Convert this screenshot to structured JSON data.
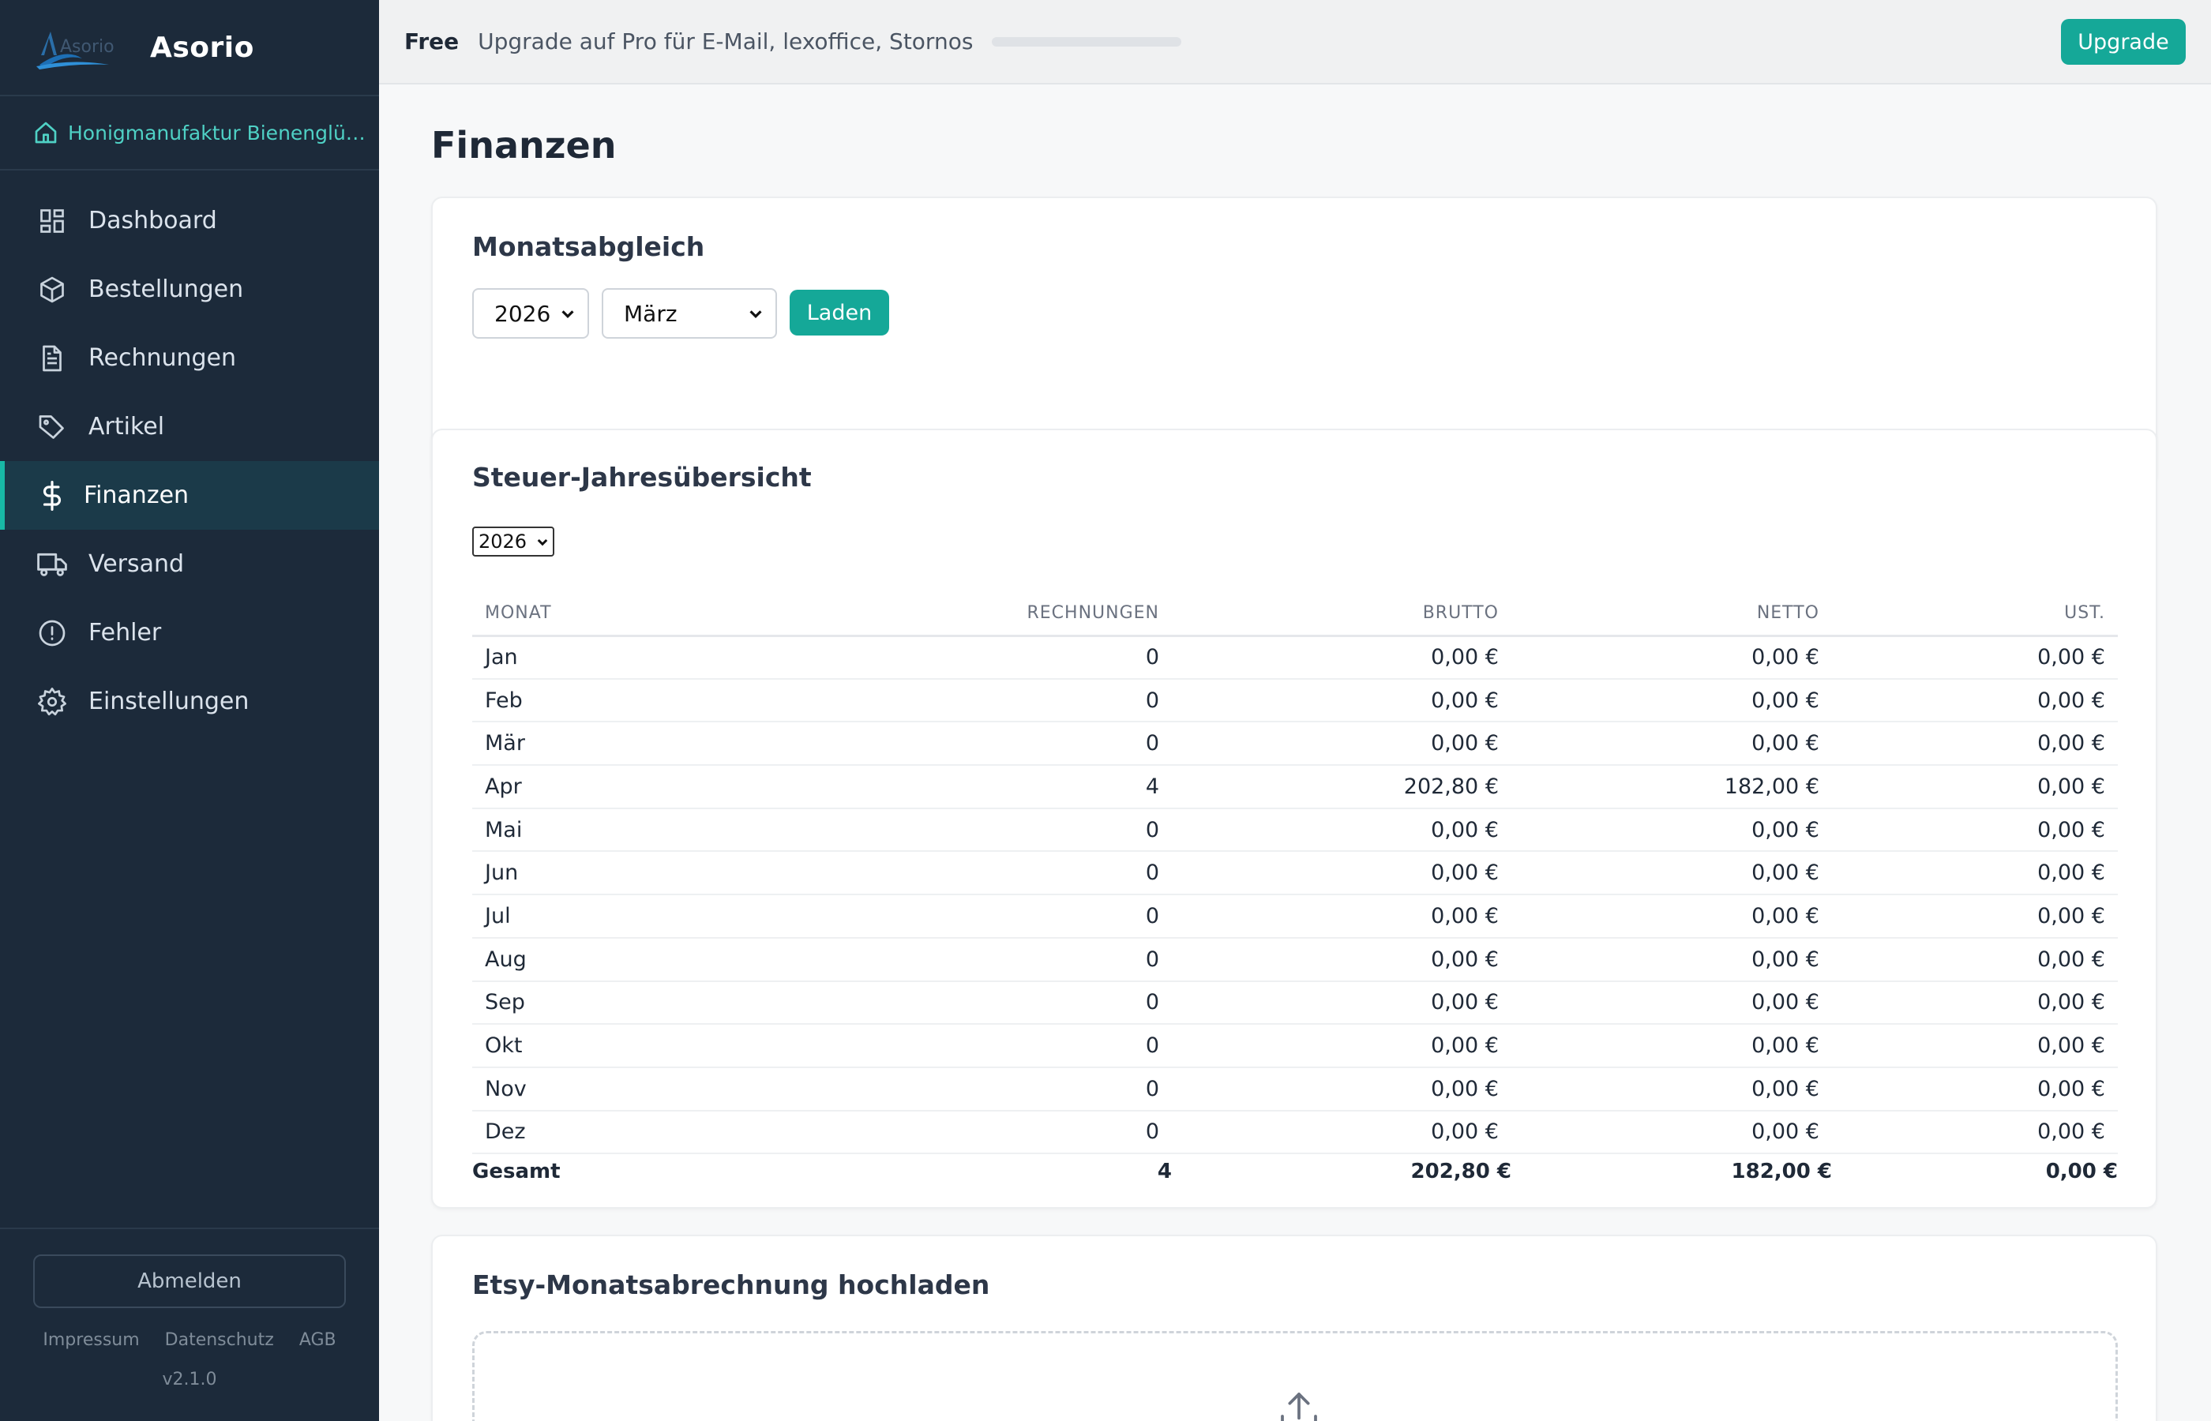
{
  "app": {
    "brand_name": "Asorio",
    "logo_text": "Asorio",
    "accent": "#18b9a6"
  },
  "company": {
    "name": "Honigmanufaktur Bienenglü…"
  },
  "sidebar": {
    "items": [
      {
        "label": "Dashboard",
        "icon": "dashboard-icon",
        "active": false
      },
      {
        "label": "Bestellungen",
        "icon": "box-icon",
        "active": false
      },
      {
        "label": "Rechnungen",
        "icon": "document-icon",
        "active": false
      },
      {
        "label": "Artikel",
        "icon": "tag-icon",
        "active": false
      },
      {
        "label": "Finanzen",
        "icon": "dollar-icon",
        "active": true
      },
      {
        "label": "Versand",
        "icon": "truck-icon",
        "active": false
      },
      {
        "label": "Fehler",
        "icon": "alert-icon",
        "active": false
      },
      {
        "label": "Einstellungen",
        "icon": "gear-icon",
        "active": false
      }
    ],
    "logout_label": "Abmelden",
    "footer_links": [
      "Impressum",
      "Datenschutz",
      "AGB"
    ],
    "version": "v2.1.0"
  },
  "topbar": {
    "plan": "Free",
    "upgrade_text": "Upgrade auf Pro für E-Mail, lexoffice, Stornos",
    "usage_fraction": 0.0,
    "upgrade_label": "Upgrade"
  },
  "page": {
    "title": "Finanzen"
  },
  "monatsabgleich": {
    "title": "Monatsabgleich",
    "year": "2026",
    "month": "März",
    "load_label": "Laden"
  },
  "jahresuebersicht": {
    "title": "Steuer-Jahresübersicht",
    "year": "2026",
    "columns": [
      "MONAT",
      "RECHNUNGEN",
      "BRUTTO",
      "NETTO",
      "UST."
    ],
    "rows": [
      [
        "Jan",
        "0",
        "0,00 €",
        "0,00 €",
        "0,00 €"
      ],
      [
        "Feb",
        "0",
        "0,00 €",
        "0,00 €",
        "0,00 €"
      ],
      [
        "Mär",
        "0",
        "0,00 €",
        "0,00 €",
        "0,00 €"
      ],
      [
        "Apr",
        "4",
        "202,80 €",
        "182,00 €",
        "0,00 €"
      ],
      [
        "Mai",
        "0",
        "0,00 €",
        "0,00 €",
        "0,00 €"
      ],
      [
        "Jun",
        "0",
        "0,00 €",
        "0,00 €",
        "0,00 €"
      ],
      [
        "Jul",
        "0",
        "0,00 €",
        "0,00 €",
        "0,00 €"
      ],
      [
        "Aug",
        "0",
        "0,00 €",
        "0,00 €",
        "0,00 €"
      ],
      [
        "Sep",
        "0",
        "0,00 €",
        "0,00 €",
        "0,00 €"
      ],
      [
        "Okt",
        "0",
        "0,00 €",
        "0,00 €",
        "0,00 €"
      ],
      [
        "Nov",
        "0",
        "0,00 €",
        "0,00 €",
        "0,00 €"
      ],
      [
        "Dez",
        "0",
        "0,00 €",
        "0,00 €",
        "0,00 €"
      ]
    ],
    "total": [
      "Gesamt",
      "4",
      "202,80 €",
      "182,00 €",
      "0,00 €"
    ]
  },
  "etsy_upload": {
    "title": "Etsy-Monatsabrechnung hochladen"
  }
}
